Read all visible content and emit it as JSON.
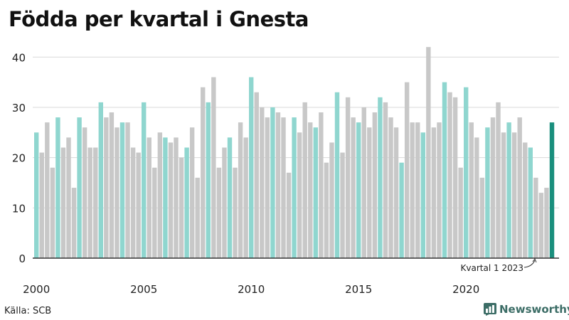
{
  "title": "Födda per kvartal i Gnesta",
  "source": "Källa: SCB",
  "brand": "Newsworthy",
  "chart_data": {
    "type": "bar",
    "title": "Födda per kvartal i Gnesta",
    "ylim": [
      0,
      44
    ],
    "yticks": [
      0,
      10,
      20,
      30,
      40
    ],
    "xtick_labels": [
      "2000",
      "2005",
      "2010",
      "2015",
      "2020"
    ],
    "grid": true,
    "colors": {
      "q1": "#8fd6cf",
      "other": "#c8c8c8",
      "latest": "#1a8f7d",
      "axis": "#333333"
    },
    "annotation": "Kvartal 1 2023",
    "values": [
      25,
      21,
      27,
      18,
      28,
      22,
      24,
      14,
      28,
      26,
      22,
      22,
      31,
      28,
      29,
      26,
      27,
      27,
      22,
      21,
      31,
      24,
      18,
      25,
      24,
      23,
      24,
      20,
      22,
      26,
      16,
      34,
      31,
      36,
      18,
      22,
      24,
      18,
      27,
      24,
      36,
      33,
      30,
      28,
      30,
      29,
      28,
      17,
      28,
      25,
      31,
      27,
      26,
      29,
      19,
      23,
      33,
      21,
      32,
      28,
      27,
      30,
      26,
      29,
      32,
      31,
      28,
      26,
      19,
      35,
      27,
      27,
      25,
      42,
      26,
      27,
      35,
      33,
      32,
      18,
      34,
      27,
      24,
      16,
      26,
      28,
      31,
      25,
      27,
      25,
      28,
      23,
      22,
      16,
      13,
      14,
      27
    ]
  }
}
